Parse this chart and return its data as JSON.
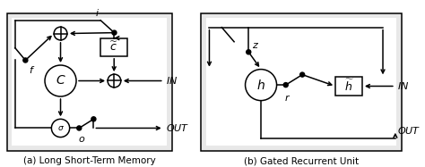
{
  "fig_width": 4.74,
  "fig_height": 1.87,
  "dpi": 100,
  "bg_color": "#ffffff",
  "box_fill": "#e8e8e8",
  "label_a": "(a) Long Short-Term Memory",
  "label_b": "(b) Gated Recurrent Unit",
  "label_fontsize": 7.5,
  "lw": 1.1
}
